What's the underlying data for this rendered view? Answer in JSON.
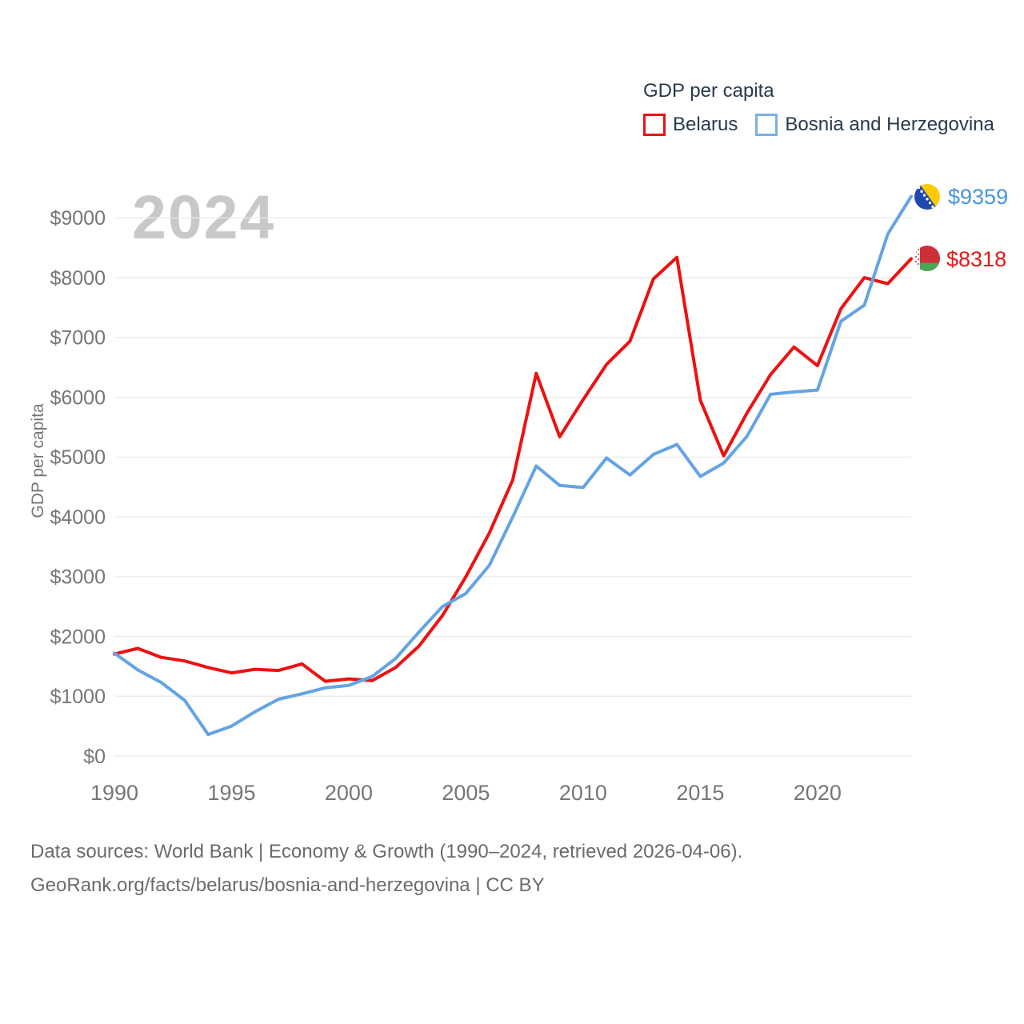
{
  "legend": {
    "title": "GDP per capita",
    "items": [
      {
        "label": "Belarus",
        "color": "#ee1111"
      },
      {
        "label": "Bosnia and Herzegovina",
        "color": "#79b1e8"
      }
    ]
  },
  "watermark": "2024",
  "footer": {
    "line1": "Data sources: World Bank | Economy & Growth (1990–2024, retrieved 2026-04-06).",
    "line2": "GeoRank.org/facts/belarus/bosnia-and-herzegovina | CC BY"
  },
  "chart_data": {
    "type": "line",
    "title": "GDP per capita",
    "xlabel": "",
    "ylabel": "GDP per capita",
    "grid": "horizontal",
    "legend_position": "top-right",
    "ylim": [
      0,
      9700
    ],
    "x": [
      1990,
      1991,
      1992,
      1993,
      1994,
      1995,
      1996,
      1997,
      1998,
      1999,
      2000,
      2001,
      2002,
      2003,
      2004,
      2005,
      2006,
      2007,
      2008,
      2009,
      2010,
      2011,
      2012,
      2013,
      2014,
      2015,
      2016,
      2017,
      2018,
      2019,
      2020,
      2021,
      2022,
      2023,
      2024
    ],
    "series": [
      {
        "name": "Belarus",
        "color": "#ee1111",
        "end_label": "$8318",
        "flag": "belarus-flag",
        "values": [
          1705,
          1800,
          1650,
          1590,
          1480,
          1390,
          1450,
          1430,
          1540,
          1250,
          1290,
          1260,
          1480,
          1840,
          2350,
          3000,
          3730,
          4620,
          6400,
          5340,
          5960,
          6550,
          6940,
          7980,
          8340,
          5950,
          5020,
          5740,
          6380,
          6840,
          6530,
          7480,
          8000,
          7900,
          8318
        ]
      },
      {
        "name": "Bosnia and Herzegovina",
        "color": "#64a4e4",
        "end_label": "$9359",
        "flag": "bosnia-flag",
        "values": [
          1720,
          1440,
          1230,
          930,
          360,
          500,
          740,
          950,
          1040,
          1140,
          1180,
          1330,
          1630,
          2075,
          2500,
          2720,
          3190,
          4000,
          4850,
          4525,
          4490,
          4985,
          4700,
          5045,
          5210,
          4675,
          4900,
          5350,
          6050,
          6090,
          6120,
          7270,
          7540,
          8730,
          9359
        ]
      }
    ],
    "xticks": [
      {
        "value": 1990,
        "label": "1990"
      },
      {
        "value": 1995,
        "label": "1995"
      },
      {
        "value": 2000,
        "label": "2000"
      },
      {
        "value": 2005,
        "label": "2005"
      },
      {
        "value": 2010,
        "label": "2010"
      },
      {
        "value": 2015,
        "label": "2015"
      },
      {
        "value": 2020,
        "label": "2020"
      }
    ],
    "yticks": [
      {
        "value": 0,
        "label": "$0"
      },
      {
        "value": 1000,
        "label": "$1000"
      },
      {
        "value": 2000,
        "label": "$2000"
      },
      {
        "value": 3000,
        "label": "$3000"
      },
      {
        "value": 4000,
        "label": "$4000"
      },
      {
        "value": 5000,
        "label": "$5000"
      },
      {
        "value": 6000,
        "label": "$6000"
      },
      {
        "value": 7000,
        "label": "$7000"
      },
      {
        "value": 8000,
        "label": "$8000"
      },
      {
        "value": 9000,
        "label": "$9000"
      }
    ]
  }
}
